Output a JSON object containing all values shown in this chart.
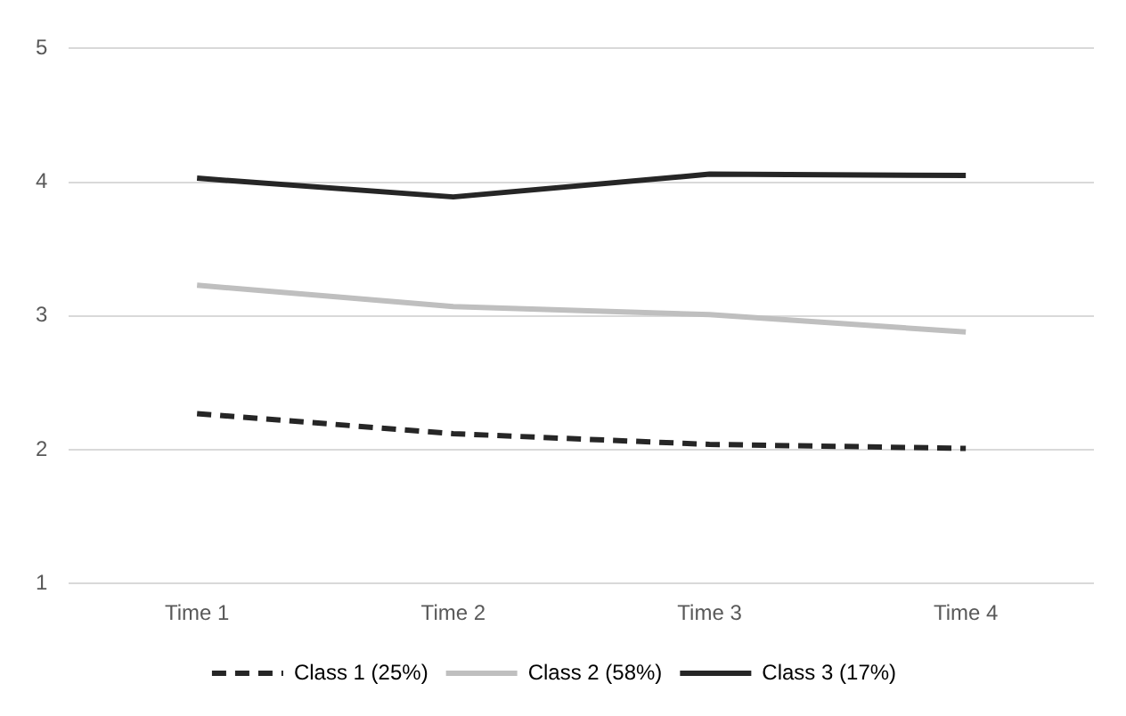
{
  "chart_data": {
    "type": "line",
    "categories": [
      "Time 1",
      "Time 2",
      "Time 3",
      "Time 4"
    ],
    "series": [
      {
        "name": "Class 1 (25%)",
        "color": "#262626",
        "line_style": "dashed",
        "values": [
          2.27,
          2.12,
          2.04,
          2.01
        ]
      },
      {
        "name": "Class 2 (58%)",
        "color": "#bfbfbf",
        "values": [
          3.23,
          3.07,
          3.01,
          2.88
        ]
      },
      {
        "name": "Class 3 (17%)",
        "color": "#262626",
        "values": [
          4.03,
          3.89,
          4.06,
          4.05
        ]
      }
    ],
    "ylim": [
      1,
      5
    ],
    "yticks": [
      1,
      2,
      3,
      4,
      5
    ],
    "grid": "y",
    "legend": "bottom",
    "marker": "none"
  }
}
